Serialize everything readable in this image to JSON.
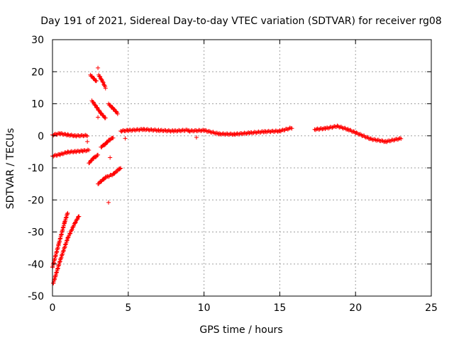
{
  "chart_data": {
    "type": "scatter",
    "title": "Day 191 of 2021, Sidereal Day-to-day VTEC variation (SDTVAR) for receiver rg08",
    "xlabel": "GPS time / hours",
    "ylabel": "SDTVAR / TECUs",
    "xlim": [
      0,
      25
    ],
    "ylim": [
      -50,
      30
    ],
    "xticks": [
      0,
      5,
      10,
      15,
      20,
      25
    ],
    "yticks": [
      -50,
      -40,
      -30,
      -20,
      -10,
      0,
      10,
      20,
      30
    ],
    "grid": true,
    "marker": "+",
    "series_color": "#ff0000",
    "segments": [
      {
        "name": "steep-track-a",
        "points": [
          [
            0.0,
            -41
          ],
          [
            0.4,
            -34
          ],
          [
            0.8,
            -27
          ],
          [
            1.0,
            -24
          ]
        ]
      },
      {
        "name": "steep-track-b",
        "points": [
          [
            0.05,
            -46
          ],
          [
            0.5,
            -39
          ],
          [
            1.0,
            -32
          ],
          [
            1.5,
            -27
          ],
          [
            1.75,
            -25
          ]
        ]
      },
      {
        "name": "near-zero-early",
        "points": [
          [
            0.0,
            0.3
          ],
          [
            0.5,
            0.7
          ],
          [
            1.0,
            0.3
          ],
          [
            1.5,
            0.0
          ],
          [
            2.3,
            0.1
          ]
        ]
      },
      {
        "name": "low-track-early",
        "points": [
          [
            0.0,
            -6.3
          ],
          [
            0.5,
            -5.8
          ],
          [
            1.0,
            -5.1
          ],
          [
            1.5,
            -4.9
          ],
          [
            2.0,
            -4.7
          ],
          [
            2.4,
            -4.5
          ]
        ]
      },
      {
        "name": "upper-arc-1",
        "points": [
          [
            2.5,
            19
          ],
          [
            2.7,
            18
          ],
          [
            2.9,
            17
          ]
        ]
      },
      {
        "name": "upper-arc-2",
        "points": [
          [
            3.05,
            19
          ],
          [
            3.3,
            17
          ],
          [
            3.5,
            15
          ]
        ]
      },
      {
        "name": "upper-arc-3",
        "points": [
          [
            2.6,
            11
          ],
          [
            2.9,
            9
          ],
          [
            3.2,
            7
          ],
          [
            3.5,
            5.5
          ]
        ]
      },
      {
        "name": "upper-arc-4",
        "points": [
          [
            3.7,
            10
          ],
          [
            4.0,
            8.5
          ],
          [
            4.3,
            7
          ]
        ]
      },
      {
        "name": "lower-arc-1",
        "points": [
          [
            2.4,
            -8.5
          ],
          [
            2.7,
            -7
          ],
          [
            3.0,
            -6
          ]
        ]
      },
      {
        "name": "lower-arc-2",
        "points": [
          [
            3.0,
            -15
          ],
          [
            3.5,
            -13
          ],
          [
            4.0,
            -12
          ],
          [
            4.5,
            -10
          ]
        ]
      },
      {
        "name": "mid-arc",
        "points": [
          [
            3.2,
            -3.5
          ],
          [
            3.5,
            -2.5
          ],
          [
            3.7,
            -1.5
          ],
          [
            4.0,
            -0.5
          ]
        ]
      },
      {
        "name": "main-track-1",
        "points": [
          [
            4.5,
            1.5
          ],
          [
            5.0,
            1.7
          ],
          [
            6.0,
            2.0
          ],
          [
            7.0,
            1.7
          ],
          [
            8.0,
            1.5
          ],
          [
            9.0,
            1.8
          ]
        ]
      },
      {
        "name": "main-track-2",
        "points": [
          [
            9.0,
            1.5
          ],
          [
            10.0,
            1.7
          ],
          [
            11.0,
            0.6
          ],
          [
            12.0,
            0.5
          ],
          [
            13.0,
            0.9
          ],
          [
            14.0,
            1.3
          ],
          [
            15.0,
            1.5
          ],
          [
            15.8,
            2.5
          ]
        ]
      },
      {
        "name": "main-track-3",
        "points": [
          [
            17.3,
            2.0
          ],
          [
            18.0,
            2.3
          ],
          [
            18.8,
            3.0
          ],
          [
            19.5,
            2.0
          ],
          [
            20.0,
            1.0
          ],
          [
            21.0,
            -1.0
          ],
          [
            22.0,
            -1.8
          ],
          [
            23.0,
            -0.8
          ]
        ]
      }
    ],
    "outliers": [
      [
        3.0,
        21.2
      ],
      [
        3.7,
        -20.8
      ],
      [
        2.3,
        -1.8
      ],
      [
        3.0,
        5.8
      ],
      [
        3.8,
        -6.8
      ],
      [
        9.5,
        -0.5
      ],
      [
        4.8,
        -0.8
      ]
    ]
  }
}
